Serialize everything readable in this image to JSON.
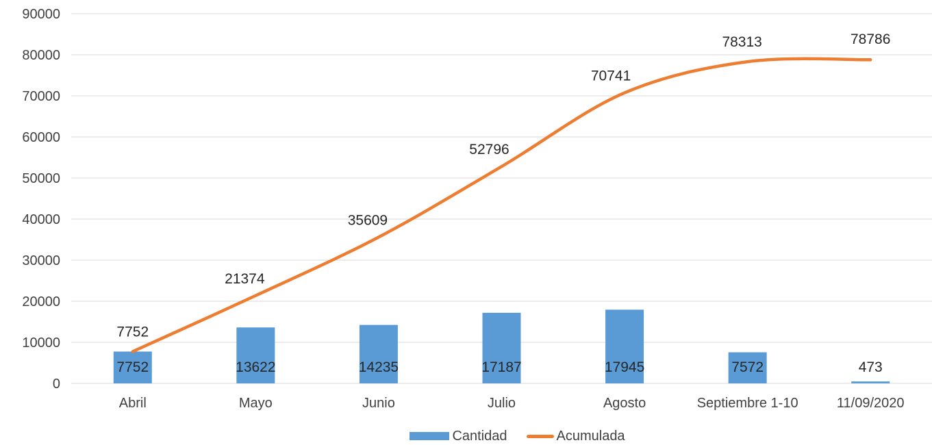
{
  "chart_data": {
    "type": "bar",
    "categories": [
      "Abril",
      "Mayo",
      "Junio",
      "Julio",
      "Agosto",
      "Septiembre 1-10",
      "11/09/2020"
    ],
    "series": [
      {
        "name": "Cantidad",
        "type": "bar",
        "color": "#5b9bd5",
        "values": [
          7752,
          13622,
          14235,
          17187,
          17945,
          7572,
          473
        ]
      },
      {
        "name": "Acumulada",
        "type": "line",
        "color": "#ed7d31",
        "smooth": true,
        "values": [
          7752,
          21374,
          35609,
          52796,
          70741,
          78313,
          78786
        ]
      }
    ],
    "yticks": [
      "0",
      "10000",
      "20000",
      "30000",
      "40000",
      "50000",
      "60000",
      "70000",
      "80000",
      "90000"
    ],
    "ylim": [
      0,
      90000
    ],
    "grid": true,
    "legend_position": "bottom"
  }
}
